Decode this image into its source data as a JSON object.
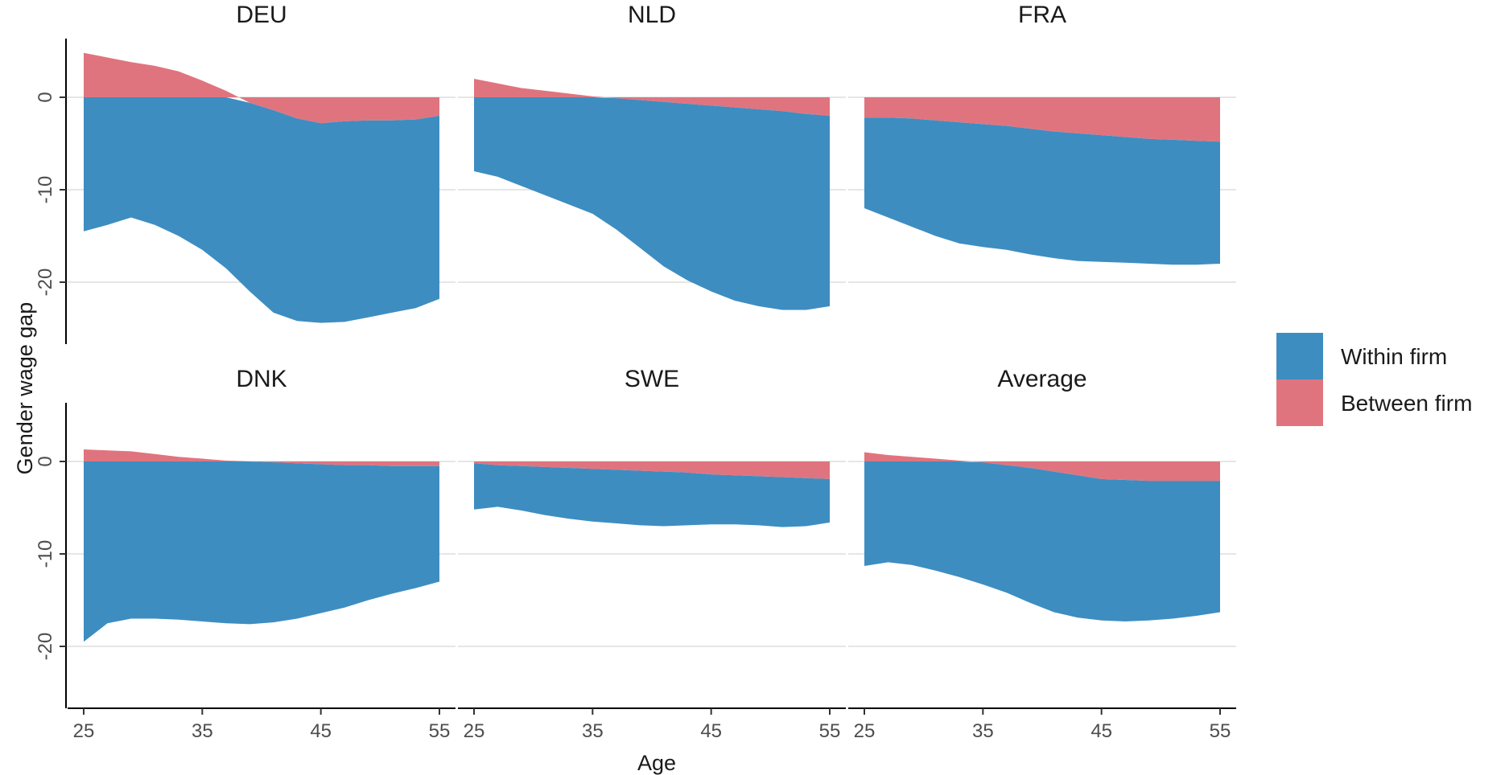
{
  "chart_data": {
    "type": "area",
    "xlabel": "Age",
    "ylabel": "Gender wage gap",
    "xlim": [
      25,
      55
    ],
    "ylim": [
      -26,
      6
    ],
    "x_ticks": [
      "25",
      "35",
      "45",
      "55"
    ],
    "y_ticks": [
      "0",
      "-10",
      "-20"
    ],
    "grid": true,
    "legend_position": "right",
    "legend": [
      {
        "label": "Within firm",
        "color": "#3d8dc1"
      },
      {
        "label": "Between firm",
        "color": "#e0747e"
      }
    ],
    "x": [
      25,
      27,
      29,
      31,
      33,
      35,
      37,
      39,
      41,
      43,
      45,
      47,
      49,
      51,
      53,
      55
    ],
    "panels": [
      {
        "title": "DEU",
        "within": [
          -14.5,
          -13.8,
          -13.0,
          -13.8,
          -15.0,
          -16.5,
          -18.5,
          -21.0,
          -23.3,
          -24.2,
          -24.4,
          -24.3,
          -23.8,
          -23.3,
          -22.8,
          -21.8
        ],
        "between": [
          4.8,
          4.3,
          3.8,
          3.4,
          2.8,
          1.8,
          0.7,
          -0.6,
          -1.4,
          -2.3,
          -2.8,
          -2.6,
          -2.5,
          -2.5,
          -2.4,
          -2.0
        ]
      },
      {
        "title": "NLD",
        "within": [
          -8.0,
          -8.6,
          -9.6,
          -10.6,
          -11.6,
          -12.6,
          -14.3,
          -16.3,
          -18.3,
          -19.8,
          -21.0,
          -22.0,
          -22.6,
          -23.0,
          -23.0,
          -22.6
        ],
        "between": [
          2.0,
          1.5,
          1.0,
          0.7,
          0.4,
          0.1,
          -0.1,
          -0.3,
          -0.5,
          -0.7,
          -0.9,
          -1.1,
          -1.3,
          -1.5,
          -1.8,
          -2.0
        ]
      },
      {
        "title": "FRA",
        "within": [
          -12.0,
          -13.0,
          -14.0,
          -15.0,
          -15.8,
          -16.2,
          -16.5,
          -17.0,
          -17.4,
          -17.7,
          -17.8,
          -17.9,
          -18.0,
          -18.1,
          -18.1,
          -18.0
        ],
        "between": [
          -2.2,
          -2.2,
          -2.3,
          -2.5,
          -2.7,
          -2.9,
          -3.1,
          -3.4,
          -3.7,
          -3.9,
          -4.1,
          -4.3,
          -4.5,
          -4.6,
          -4.7,
          -4.8
        ]
      },
      {
        "title": "DNK",
        "within": [
          -19.5,
          -17.5,
          -17.0,
          -17.0,
          -17.1,
          -17.3,
          -17.5,
          -17.6,
          -17.4,
          -17.0,
          -16.4,
          -15.8,
          -15.0,
          -14.3,
          -13.7,
          -13.0
        ],
        "between": [
          1.3,
          1.2,
          1.1,
          0.8,
          0.5,
          0.3,
          0.1,
          0.0,
          -0.1,
          -0.2,
          -0.3,
          -0.4,
          -0.4,
          -0.5,
          -0.5,
          -0.5
        ]
      },
      {
        "title": "SWE",
        "within": [
          -5.2,
          -4.9,
          -5.3,
          -5.8,
          -6.2,
          -6.5,
          -6.7,
          -6.9,
          -7.0,
          -6.9,
          -6.8,
          -6.8,
          -6.9,
          -7.1,
          -7.0,
          -6.6
        ],
        "between": [
          -0.2,
          -0.4,
          -0.5,
          -0.6,
          -0.7,
          -0.8,
          -0.9,
          -1.0,
          -1.1,
          -1.2,
          -1.4,
          -1.5,
          -1.6,
          -1.7,
          -1.8,
          -1.9
        ]
      },
      {
        "title": "Average",
        "within": [
          -11.3,
          -10.9,
          -11.2,
          -11.8,
          -12.5,
          -13.3,
          -14.2,
          -15.3,
          -16.3,
          -16.9,
          -17.2,
          -17.3,
          -17.2,
          -17.0,
          -16.7,
          -16.3
        ],
        "between": [
          1.0,
          0.7,
          0.5,
          0.3,
          0.1,
          -0.1,
          -0.4,
          -0.7,
          -1.1,
          -1.5,
          -1.9,
          -2.0,
          -2.1,
          -2.1,
          -2.1,
          -2.1
        ]
      }
    ]
  }
}
